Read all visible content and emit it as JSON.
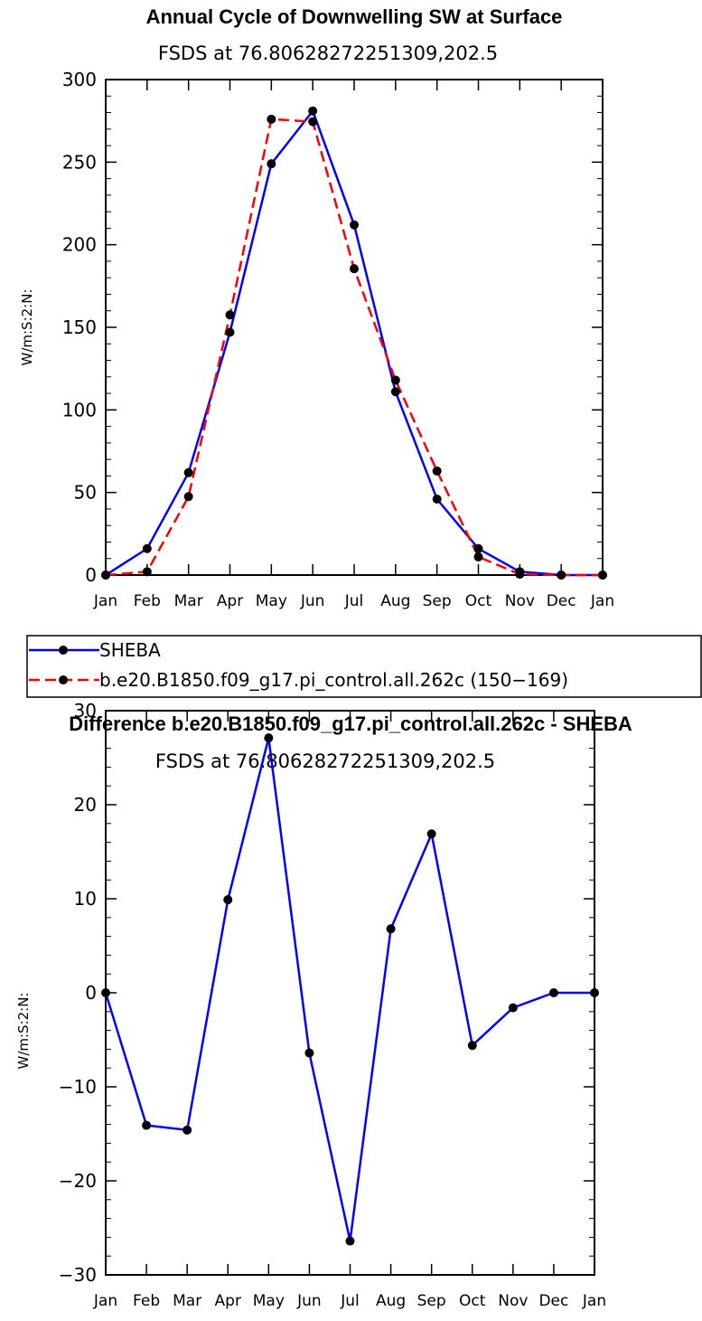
{
  "chart_data": [
    {
      "type": "line",
      "title": "Annual Cycle of Downwelling SW at Surface",
      "subtitle": "FSDS at 76.80628272251309,202.5",
      "xlabel": "",
      "ylabel": "W/m:S:2:N:",
      "categories": [
        "Jan",
        "Feb",
        "Mar",
        "Apr",
        "May",
        "Jun",
        "Jul",
        "Aug",
        "Sep",
        "Oct",
        "Nov",
        "Dec",
        "Jan"
      ],
      "ylim": [
        0,
        300
      ],
      "yticks": [
        0,
        50,
        100,
        150,
        200,
        250,
        300
      ],
      "ytick_labels": [
        "0",
        "50",
        "100",
        "150",
        "200",
        "250",
        "300"
      ],
      "series": [
        {
          "name": "SHEBA",
          "color": "#0000ff",
          "dash": "solid",
          "values": [
            0,
            16,
            62,
            147,
            249,
            281,
            212,
            111,
            46,
            16,
            2,
            0,
            0
          ]
        },
        {
          "name": "b.e20.B1850.f09_g17.pi_control.all.262c (150−169)",
          "color": "#ff0000",
          "dash": "dashed",
          "values": [
            0,
            2,
            47.5,
            157.5,
            276,
            274.5,
            185.5,
            118,
            63,
            11,
            0.5,
            0,
            0
          ]
        }
      ]
    },
    {
      "type": "line",
      "title": "Difference b.e20.B1850.f09_g17.pi_control.all.262c - SHEBA",
      "subtitle": "FSDS at 76.80628272251309,202.5",
      "xlabel": "",
      "ylabel": "W/m:S:2:N:",
      "categories": [
        "Jan",
        "Feb",
        "Mar",
        "Apr",
        "May",
        "Jun",
        "Jul",
        "Aug",
        "Sep",
        "Oct",
        "Nov",
        "Dec",
        "Jan"
      ],
      "ylim": [
        -30,
        30
      ],
      "yticks": [
        -30,
        -20,
        -10,
        0,
        10,
        20,
        30
      ],
      "ytick_labels": [
        "−30",
        "−20",
        "−10",
        "0",
        "10",
        "20",
        "30"
      ],
      "series": [
        {
          "name": "Difference",
          "color": "#0000ff",
          "dash": "solid",
          "values": [
            0,
            -14.1,
            -14.6,
            9.9,
            27.1,
            -6.4,
            -26.4,
            6.8,
            16.9,
            -5.6,
            -1.6,
            0,
            0
          ]
        }
      ]
    }
  ]
}
